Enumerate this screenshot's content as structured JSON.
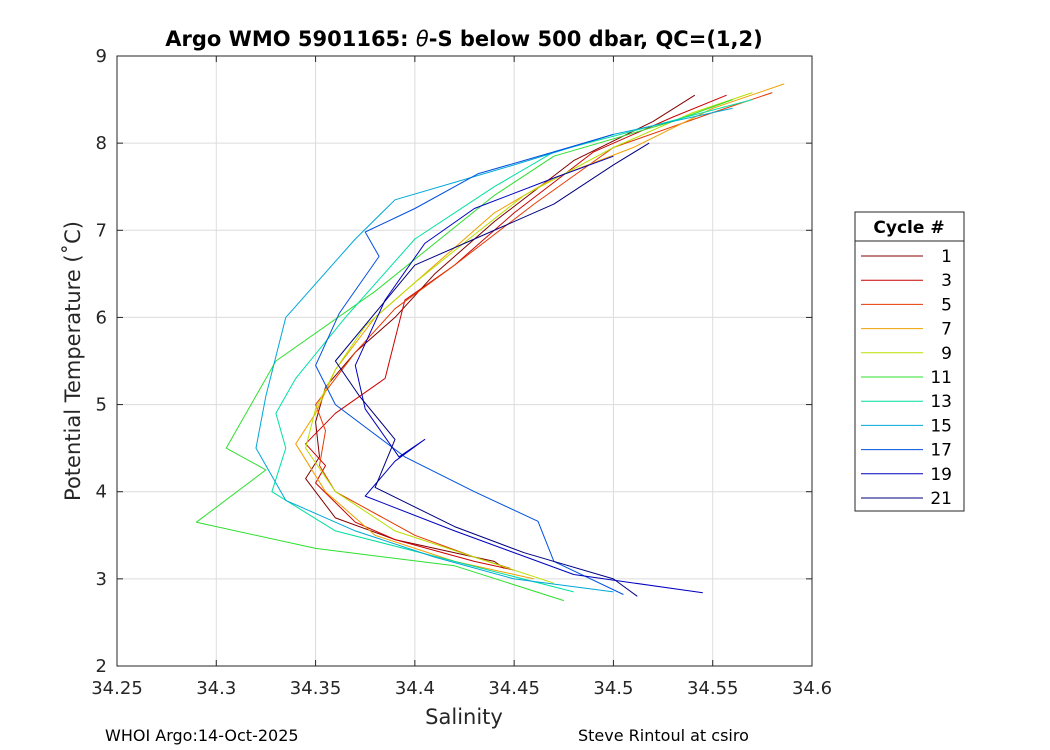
{
  "chart_data": {
    "type": "line",
    "title_prefix": "Argo WMO 5901165: ",
    "title_theta": "θ",
    "title_suffix": "-S below 500 dbar,  QC=(1,2)",
    "xlabel": "Salinity",
    "ylabel": "Potential Temperature (˚C)",
    "xlim": [
      34.25,
      34.6
    ],
    "ylim": [
      2,
      9
    ],
    "xticks": [
      "34.25",
      "34.3",
      "34.35",
      "34.4",
      "34.45",
      "34.5",
      "34.55",
      "34.6"
    ],
    "yticks": [
      "2",
      "3",
      "4",
      "5",
      "6",
      "7",
      "8",
      "9"
    ],
    "grid": true,
    "legend": {
      "title": "Cycle #",
      "placement": "outside-right"
    },
    "series": [
      {
        "name": "1",
        "color": "#800000",
        "x": [
          34.541,
          34.52,
          34.48,
          34.44,
          34.41,
          34.39,
          34.37,
          34.355,
          34.35,
          34.352,
          34.345,
          34.36,
          34.39,
          34.42,
          34.44,
          34.445
        ],
        "y": [
          8.55,
          8.25,
          7.8,
          7.1,
          6.5,
          6.0,
          5.6,
          5.2,
          4.8,
          4.4,
          4.15,
          3.7,
          3.45,
          3.3,
          3.2,
          3.12
        ]
      },
      {
        "name": "3",
        "color": "#cc0000",
        "x": [
          34.557,
          34.53,
          34.49,
          34.45,
          34.42,
          34.395,
          34.385,
          34.36,
          34.345,
          34.355,
          34.35,
          34.37,
          34.39,
          34.43,
          34.45
        ],
        "y": [
          8.55,
          8.3,
          7.9,
          7.2,
          6.6,
          6.2,
          5.3,
          4.9,
          4.55,
          4.3,
          4.1,
          3.65,
          3.45,
          3.2,
          3.1
        ]
      },
      {
        "name": "5",
        "color": "#e83800",
        "x": [
          34.58,
          34.55,
          34.5,
          34.46,
          34.42,
          34.39,
          34.37,
          34.35,
          34.355,
          34.352,
          34.36,
          34.4,
          34.43,
          34.448
        ],
        "y": [
          8.58,
          8.35,
          7.95,
          7.3,
          6.6,
          6.1,
          5.6,
          5.0,
          4.7,
          4.3,
          4.0,
          3.5,
          3.25,
          3.12
        ]
      },
      {
        "name": "7",
        "color": "#f0a000",
        "x": [
          34.586,
          34.55,
          34.51,
          34.47,
          34.44,
          34.41,
          34.38,
          34.36,
          34.35,
          34.34,
          34.355,
          34.38,
          34.42,
          34.46
        ],
        "y": [
          8.68,
          8.4,
          7.95,
          7.6,
          7.2,
          6.6,
          6.0,
          5.4,
          4.9,
          4.55,
          4.0,
          3.5,
          3.2,
          3.0
        ]
      },
      {
        "name": "9",
        "color": "#b8e000",
        "x": [
          34.57,
          34.54,
          34.5,
          34.455,
          34.43,
          34.4,
          34.375,
          34.36,
          34.35,
          34.345,
          34.36,
          34.39,
          34.43,
          34.47
        ],
        "y": [
          8.58,
          8.35,
          7.95,
          7.4,
          6.95,
          6.4,
          5.9,
          5.4,
          4.95,
          4.5,
          4.0,
          3.55,
          3.25,
          2.95
        ]
      },
      {
        "name": "11",
        "color": "#2ee02e",
        "x": [
          34.56,
          34.53,
          34.47,
          34.44,
          34.38,
          34.33,
          34.305,
          34.325,
          34.29,
          34.35,
          34.42,
          34.475
        ],
        "y": [
          8.5,
          8.25,
          7.85,
          7.4,
          6.3,
          5.5,
          4.5,
          4.25,
          3.65,
          3.35,
          3.15,
          2.75
        ]
      },
      {
        "name": "13",
        "color": "#00e0a0",
        "x": [
          34.57,
          34.52,
          34.47,
          34.44,
          34.4,
          34.365,
          34.34,
          34.33,
          34.335,
          34.328,
          34.36,
          34.42,
          34.48
        ],
        "y": [
          8.5,
          8.2,
          7.9,
          7.5,
          6.9,
          6.0,
          5.3,
          4.9,
          4.5,
          4.0,
          3.55,
          3.2,
          2.85
        ]
      },
      {
        "name": "15",
        "color": "#00a8d8",
        "x": [
          34.56,
          34.5,
          34.45,
          34.42,
          34.39,
          34.37,
          34.335,
          34.325,
          34.32,
          34.335,
          34.37,
          34.41,
          34.45,
          34.5
        ],
        "y": [
          8.4,
          8.1,
          7.75,
          7.55,
          7.35,
          6.9,
          6.0,
          5.1,
          4.5,
          3.9,
          3.55,
          3.25,
          3.0,
          2.85
        ]
      },
      {
        "name": "17",
        "color": "#0050e0",
        "x": [
          34.5,
          34.47,
          34.432,
          34.4,
          34.375,
          34.382,
          34.362,
          34.35,
          34.36,
          34.395,
          34.43,
          34.462,
          34.47,
          34.505
        ],
        "y": [
          8.1,
          7.9,
          7.65,
          7.25,
          6.98,
          6.7,
          6.05,
          5.45,
          5.0,
          4.4,
          4.0,
          3.66,
          3.2,
          2.82
        ]
      },
      {
        "name": "19",
        "color": "#0000c0",
        "x": [
          34.5,
          34.47,
          34.43,
          34.405,
          34.385,
          34.37,
          34.375,
          34.392,
          34.405,
          34.39,
          34.375,
          34.42,
          34.48,
          34.545
        ],
        "y": [
          7.85,
          7.6,
          7.25,
          6.85,
          6.2,
          5.45,
          4.95,
          4.4,
          4.6,
          4.35,
          3.95,
          3.55,
          3.05,
          2.84
        ]
      },
      {
        "name": "21",
        "color": "#000080",
        "x": [
          34.518,
          34.5,
          34.47,
          34.43,
          34.4,
          34.38,
          34.36,
          34.372,
          34.39,
          34.38,
          34.42,
          34.455,
          34.5,
          34.512
        ],
        "y": [
          8.0,
          7.75,
          7.3,
          6.9,
          6.6,
          6.05,
          5.5,
          5.1,
          4.6,
          4.05,
          3.6,
          3.3,
          3.0,
          2.8
        ]
      }
    ]
  },
  "footer": {
    "left": "WHOI Argo:14-Oct-2025",
    "right": "Steve Rintoul at csiro"
  }
}
